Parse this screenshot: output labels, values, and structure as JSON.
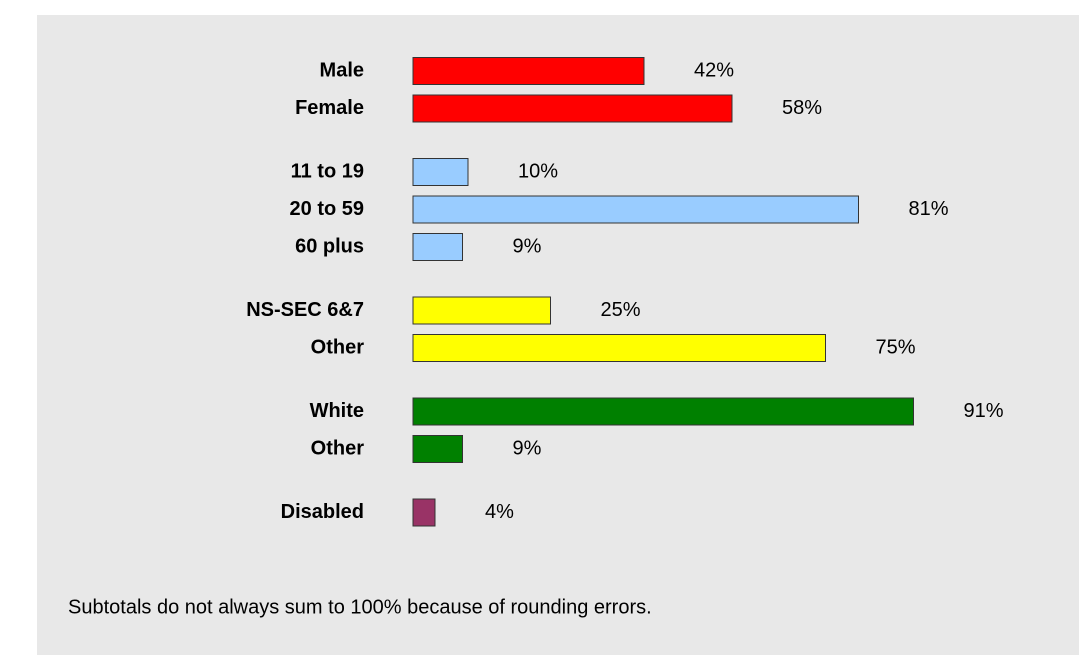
{
  "chart_data": {
    "type": "bar",
    "orientation": "horizontal",
    "series": [
      {
        "color": "#ff0000",
        "categories": [
          "Male",
          "Female"
        ],
        "values": [
          42,
          58
        ],
        "value_labels": [
          "42%",
          "58%"
        ]
      },
      {
        "color": "#99ccff",
        "categories": [
          "11 to 19",
          "20 to 59",
          "60 plus"
        ],
        "values": [
          10,
          81,
          9
        ],
        "value_labels": [
          "10%",
          "81%",
          "9%"
        ]
      },
      {
        "color": "#ffff00",
        "categories": [
          "NS-SEC 6&7",
          "Other"
        ],
        "values": [
          25,
          75
        ],
        "value_labels": [
          "25%",
          "75%"
        ]
      },
      {
        "color": "#008000",
        "categories": [
          "White",
          "Other"
        ],
        "values": [
          91,
          9
        ],
        "value_labels": [
          "91%",
          "9%"
        ]
      },
      {
        "color": "#993366",
        "categories": [
          "Disabled"
        ],
        "values": [
          4
        ],
        "value_labels": [
          "4%"
        ]
      }
    ],
    "footnote": "Subtotals do not always sum to 100% because of rounding errors."
  }
}
